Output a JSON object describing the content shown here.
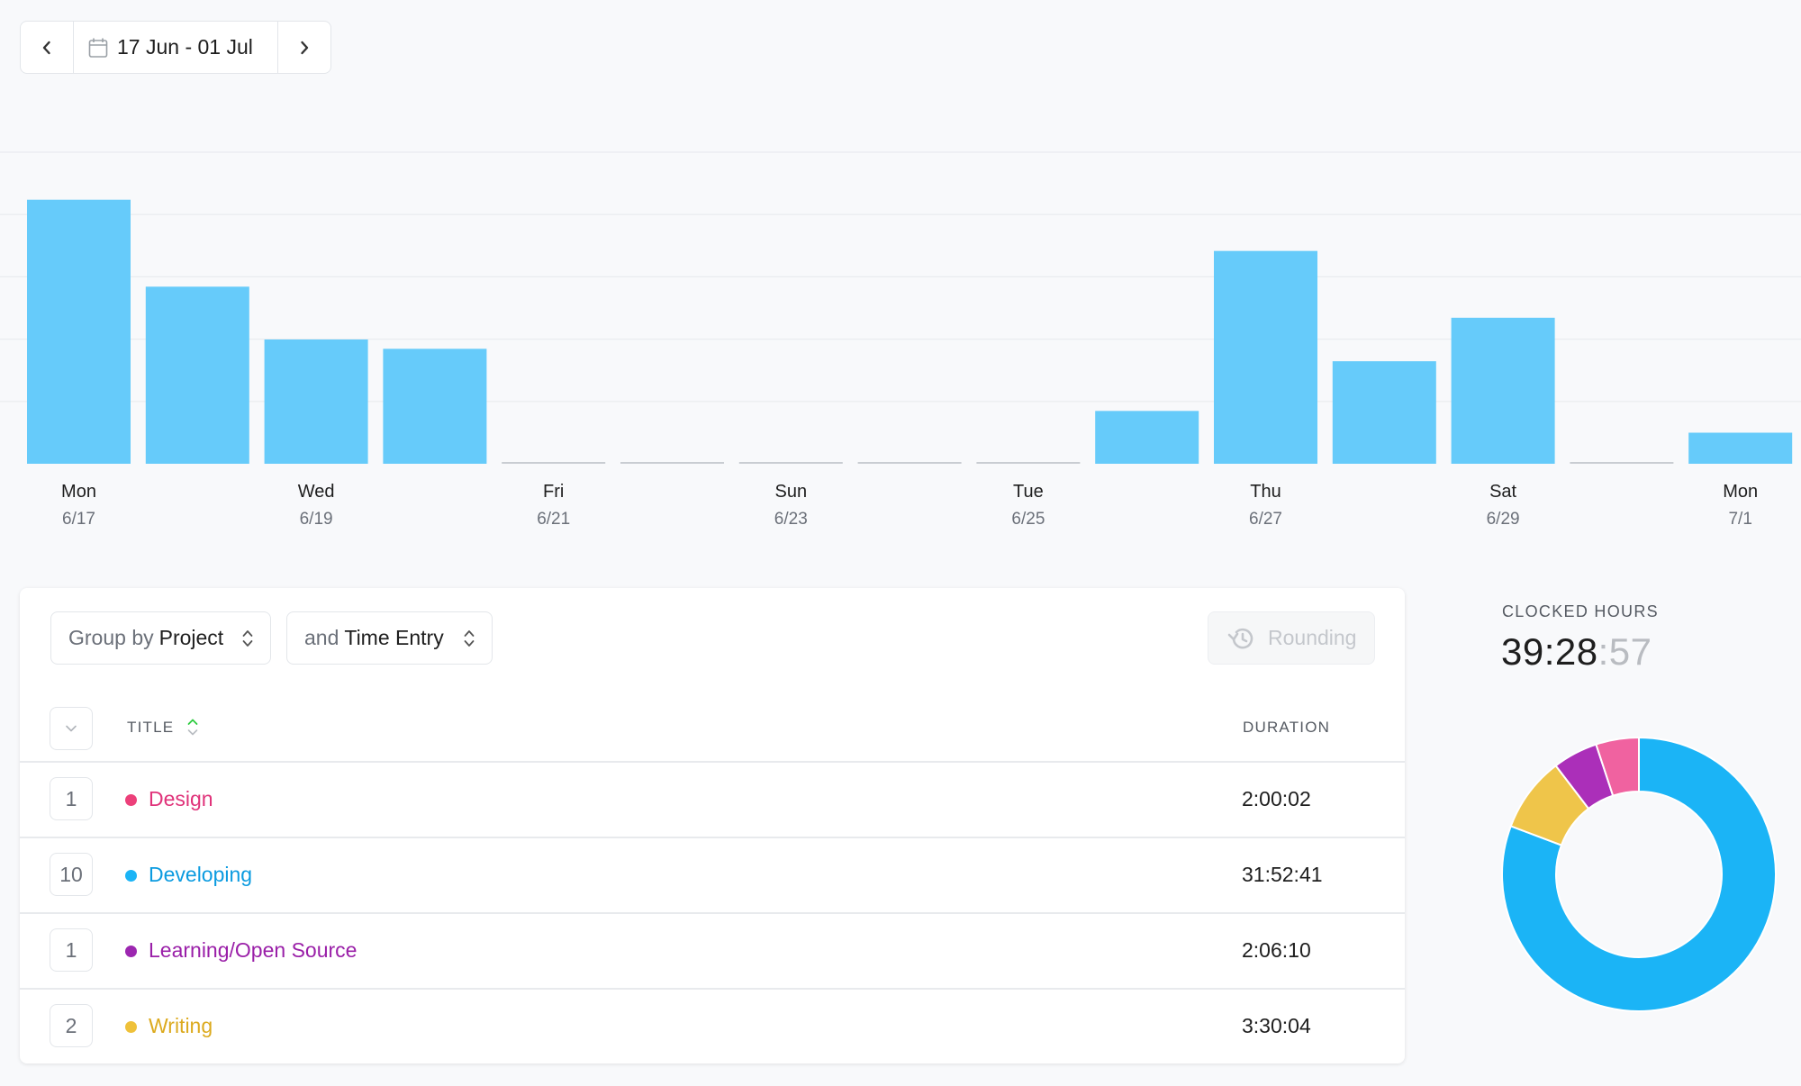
{
  "date_nav": {
    "range_label": "17 Jun - 01 Jul"
  },
  "colors": {
    "bar": "#66cbfa",
    "grid": "#e9ecef",
    "baseline": "#c9cdd2",
    "design": "#ec407a",
    "developing": "#1bb4f6",
    "learning": "#9c27b0",
    "writing": "#efc54a",
    "donut_design": "#f062a0",
    "donut_learning": "#ab2fb9"
  },
  "chart_data": {
    "type": "bar",
    "categories": [
      "6/17",
      "6/18",
      "6/19",
      "6/20",
      "6/21",
      "6/22",
      "6/23",
      "6/24",
      "6/25",
      "6/26",
      "6/27",
      "6/28",
      "6/29",
      "6/30",
      "7/1"
    ],
    "day_labels": [
      "Mon",
      "",
      "Wed",
      "",
      "Fri",
      "",
      "Sun",
      "",
      "Tue",
      "",
      "Thu",
      "",
      "Sat",
      "",
      "Mon"
    ],
    "date_labels": [
      "6/17",
      "",
      "6/19",
      "",
      "6/21",
      "",
      "6/23",
      "",
      "6/25",
      "",
      "6/27",
      "",
      "6/29",
      "",
      "7/1"
    ],
    "values": [
      8.5,
      5.7,
      4.0,
      3.7,
      0,
      0,
      0,
      0,
      0,
      1.7,
      6.85,
      3.3,
      4.7,
      0,
      1.0
    ],
    "ylim": [
      0,
      10
    ],
    "grid": true,
    "title": "",
    "xlabel": "",
    "ylabel": ""
  },
  "toolbar": {
    "group_prefix": "Group by",
    "group_value": "Project",
    "sub_prefix": "and",
    "sub_value": "Time Entry",
    "rounding_label": "Rounding"
  },
  "table": {
    "col_title": "TITLE",
    "col_duration": "DURATION",
    "rows": [
      {
        "count": "1",
        "title": "Design",
        "duration": "2:00:02"
      },
      {
        "count": "10",
        "title": "Developing",
        "duration": "31:52:41"
      },
      {
        "count": "1",
        "title": "Learning/Open Source",
        "duration": "2:06:10"
      },
      {
        "count": "2",
        "title": "Writing",
        "duration": "3:30:04"
      }
    ]
  },
  "summary": {
    "label": "CLOCKED HOURS",
    "hours_minutes": "39:28",
    "seconds": ":57",
    "breakdown": [
      {
        "name": "Developing",
        "value": 31.878
      },
      {
        "name": "Writing",
        "value": 3.501
      },
      {
        "name": "Learning/Open Source",
        "value": 2.103
      },
      {
        "name": "Design",
        "value": 2.001
      }
    ]
  }
}
